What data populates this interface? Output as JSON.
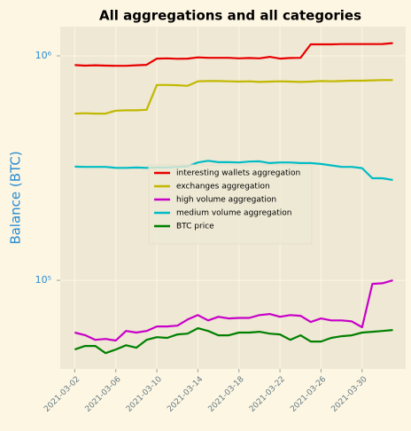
{
  "chart_data": {
    "type": "line",
    "title": "All aggregations and all categories",
    "ylabel": "Balance (BTC)",
    "x": [
      "2021-03-02",
      "2021-03-03",
      "2021-03-04",
      "2021-03-05",
      "2021-03-06",
      "2021-03-07",
      "2021-03-08",
      "2021-03-09",
      "2021-03-10",
      "2021-03-11",
      "2021-03-12",
      "2021-03-13",
      "2021-03-14",
      "2021-03-15",
      "2021-03-16",
      "2021-03-17",
      "2021-03-18",
      "2021-03-19",
      "2021-03-20",
      "2021-03-21",
      "2021-03-22",
      "2021-03-23",
      "2021-03-24",
      "2021-03-25",
      "2021-03-26",
      "2021-03-27",
      "2021-03-28",
      "2021-03-29",
      "2021-03-30",
      "2021-03-31",
      "2021-04-01",
      "2021-04-02"
    ],
    "series": [
      {
        "name": "interesting wallets aggregation",
        "color": "#e80000",
        "values": [
          910000,
          905000,
          908000,
          905000,
          903000,
          903000,
          908000,
          912000,
          972000,
          975000,
          970000,
          972000,
          985000,
          980000,
          980000,
          980000,
          975000,
          978000,
          975000,
          990000,
          972000,
          978000,
          980000,
          1125000,
          1125000,
          1125000,
          1128000,
          1128000,
          1128000,
          1128000,
          1130000,
          1140000
        ]
      },
      {
        "name": "exchanges aggregation",
        "color": "#c2b800",
        "values": [
          553000,
          555000,
          553000,
          553000,
          570000,
          572000,
          572000,
          575000,
          742000,
          742000,
          740000,
          735000,
          770000,
          772000,
          772000,
          770000,
          768000,
          770000,
          765000,
          768000,
          770000,
          768000,
          765000,
          768000,
          772000,
          770000,
          772000,
          775000,
          775000,
          778000,
          780000,
          780000
        ]
      },
      {
        "name": "high volume aggregation",
        "color": "#c800c8",
        "values": [
          58500,
          57000,
          54300,
          54800,
          53900,
          59500,
          58500,
          59500,
          62300,
          62300,
          62800,
          66900,
          70000,
          66300,
          68800,
          67600,
          68000,
          68000,
          70000,
          70800,
          68800,
          70000,
          69500,
          65200,
          67600,
          66300,
          66300,
          65600,
          61800,
          96400,
          97000,
          100000
        ]
      },
      {
        "name": "medium volume aggregation",
        "color": "#00bcc4",
        "values": [
          321000,
          320000,
          320000,
          320000,
          317000,
          317000,
          318000,
          317000,
          318000,
          318000,
          320000,
          322000,
          335000,
          341000,
          336000,
          336000,
          335000,
          338000,
          339000,
          333000,
          335000,
          335000,
          333000,
          333000,
          330000,
          325000,
          320000,
          320000,
          316000,
          285000,
          285000,
          280000
        ]
      },
      {
        "name": "BTC price",
        "color": "#008000",
        "values": [
          49200,
          51000,
          51000,
          47400,
          49200,
          51400,
          50100,
          54300,
          55800,
          55400,
          57400,
          57900,
          61200,
          59500,
          56900,
          56900,
          58500,
          58500,
          59000,
          57900,
          57400,
          54300,
          56900,
          53400,
          53400,
          55400,
          56400,
          56900,
          58500,
          59000,
          59500,
          60100
        ]
      }
    ],
    "xlim": [
      "2021-02-28T14:00:00",
      "2021-04-03T06:00:00"
    ],
    "xticks": [
      "2021-03-02",
      "2021-03-06",
      "2021-03-10",
      "2021-03-14",
      "2021-03-18",
      "2021-03-22",
      "2021-03-26",
      "2021-03-30"
    ],
    "ylim": [
      40300,
      1350000
    ],
    "yticks": [
      {
        "value": 100000,
        "label": "10⁵"
      },
      {
        "value": 1000000,
        "label": "10⁶"
      }
    ],
    "log_y": true,
    "grid": true,
    "legend": "center"
  }
}
